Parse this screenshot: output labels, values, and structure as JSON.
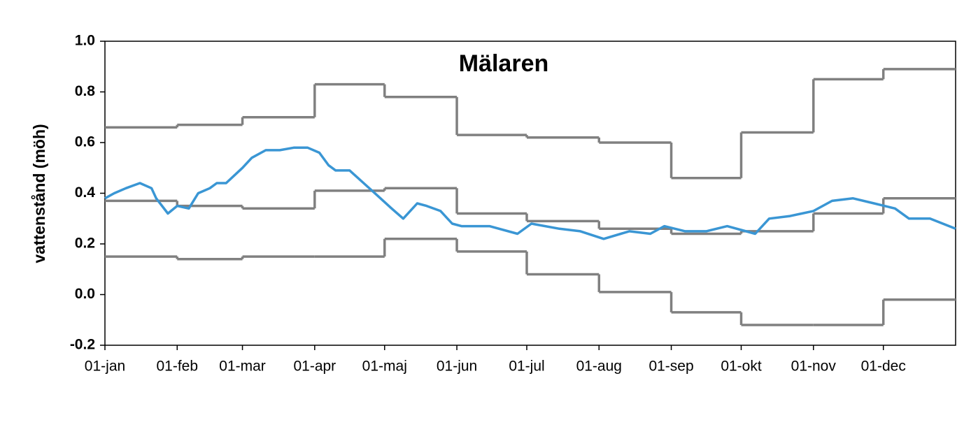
{
  "chart_data": {
    "type": "line",
    "title": "Mälaren",
    "y_label": "vattenstånd (möh)",
    "xlim": [
      0,
      365
    ],
    "ylim": [
      -0.2,
      1.0
    ],
    "xticks": [
      {
        "value": 0,
        "label": "01-jan"
      },
      {
        "value": 31,
        "label": "01-feb"
      },
      {
        "value": 59,
        "label": "01-mar"
      },
      {
        "value": 90,
        "label": "01-apr"
      },
      {
        "value": 120,
        "label": "01-maj"
      },
      {
        "value": 151,
        "label": "01-jun"
      },
      {
        "value": 181,
        "label": "01-jul"
      },
      {
        "value": 212,
        "label": "01-aug"
      },
      {
        "value": 243,
        "label": "01-sep"
      },
      {
        "value": 273,
        "label": "01-okt"
      },
      {
        "value": 304,
        "label": "01-nov"
      },
      {
        "value": 334,
        "label": "01-dec"
      }
    ],
    "yticks": [
      {
        "value": -0.2,
        "label": "-0.2"
      },
      {
        "value": 0,
        "label": "0.0"
      },
      0.2,
      0.4,
      0.6,
      0.8,
      {
        "value": 1,
        "label": "1.0"
      }
    ],
    "series": [
      {
        "style": "step",
        "color": "#808080",
        "x": [
          0,
          31,
          59,
          90,
          120,
          151,
          181,
          212,
          243,
          273,
          304,
          334
        ],
        "values": [
          0.66,
          0.67,
          0.7,
          0.83,
          0.78,
          0.63,
          0.62,
          0.6,
          0.46,
          0.64,
          0.85,
          0.89
        ]
      },
      {
        "style": "step",
        "color": "#808080",
        "x": [
          0,
          31,
          59,
          90,
          120,
          151,
          181,
          212,
          243,
          273,
          304,
          334
        ],
        "values": [
          0.37,
          0.35,
          0.34,
          0.41,
          0.42,
          0.32,
          0.29,
          0.26,
          0.24,
          0.25,
          0.32,
          0.38
        ]
      },
      {
        "style": "step",
        "color": "#808080",
        "x": [
          0,
          31,
          59,
          90,
          120,
          151,
          181,
          212,
          243,
          273,
          304,
          334
        ],
        "values": [
          0.15,
          0.14,
          0.15,
          0.15,
          0.22,
          0.17,
          0.08,
          0.01,
          -0.07,
          -0.12,
          -0.12,
          -0.02
        ]
      },
      {
        "style": "line",
        "color": "#3a96d4",
        "x": [
          0,
          4,
          9,
          12,
          15,
          20,
          22,
          27,
          31,
          36,
          40,
          45,
          48,
          52,
          59,
          63,
          69,
          75,
          81,
          87,
          92,
          96,
          99,
          105,
          111,
          117,
          123,
          128,
          134,
          138,
          144,
          149,
          153,
          165,
          177,
          183,
          195,
          204,
          214,
          225,
          234,
          240,
          249,
          258,
          267,
          279,
          285,
          294,
          304,
          312,
          321,
          330,
          339,
          345,
          354,
          365
        ],
        "values": [
          0.38,
          0.4,
          0.42,
          0.43,
          0.44,
          0.42,
          0.38,
          0.32,
          0.35,
          0.34,
          0.4,
          0.42,
          0.44,
          0.44,
          0.5,
          0.54,
          0.57,
          0.57,
          0.58,
          0.58,
          0.56,
          0.51,
          0.49,
          0.49,
          0.44,
          0.39,
          0.34,
          0.3,
          0.36,
          0.35,
          0.33,
          0.28,
          0.27,
          0.27,
          0.24,
          0.28,
          0.26,
          0.25,
          0.22,
          0.25,
          0.24,
          0.27,
          0.25,
          0.25,
          0.27,
          0.24,
          0.3,
          0.31,
          0.33,
          0.37,
          0.38,
          0.36,
          0.34,
          0.3,
          0.3,
          0.26
        ]
      }
    ]
  }
}
